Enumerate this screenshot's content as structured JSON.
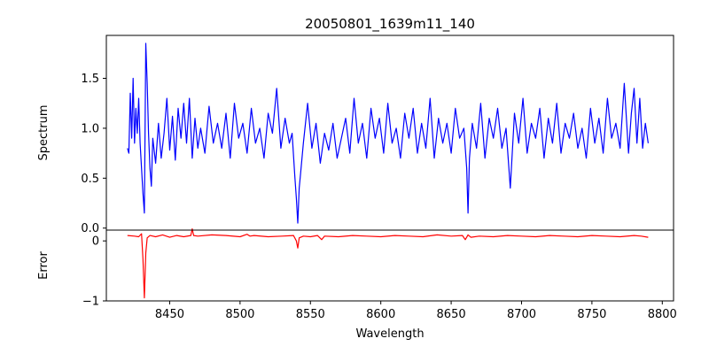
{
  "chart_data": [
    {
      "type": "line",
      "title": "20050801_1639m11_140",
      "xlabel": "",
      "ylabel": "Spectrum",
      "xlim": [
        8405,
        8808
      ],
      "ylim": [
        -0.02,
        1.93
      ],
      "yticks": [
        0.0,
        0.5,
        1.0,
        1.5
      ],
      "ytick_labels": [
        "0.0",
        "0.5",
        "1.0",
        "1.5"
      ],
      "xticks_shown": false,
      "grid": false,
      "legend": "none",
      "series": [
        {
          "color": "#0000ff",
          "x": [
            8420,
            8421,
            8422,
            8423,
            8424,
            8425,
            8426,
            8427,
            8428,
            8429,
            8430,
            8431,
            8432,
            8433,
            8434,
            8435,
            8436,
            8437,
            8438,
            8440,
            8442,
            8444,
            8446,
            8448,
            8450,
            8452,
            8454,
            8456,
            8458,
            8460,
            8462,
            8464,
            8466,
            8468,
            8470,
            8472,
            8475,
            8478,
            8481,
            8484,
            8487,
            8490,
            8493,
            8496,
            8499,
            8502,
            8505,
            8508,
            8511,
            8514,
            8517,
            8520,
            8523,
            8526,
            8529,
            8532,
            8535,
            8537,
            8539,
            8540,
            8541,
            8542,
            8543,
            8545,
            8548,
            8551,
            8554,
            8557,
            8560,
            8563,
            8566,
            8569,
            8572,
            8575,
            8578,
            8581,
            8584,
            8587,
            8590,
            8593,
            8596,
            8599,
            8602,
            8605,
            8608,
            8611,
            8614,
            8617,
            8620,
            8623,
            8626,
            8629,
            8632,
            8635,
            8638,
            8641,
            8644,
            8647,
            8650,
            8653,
            8656,
            8659,
            8661,
            8662,
            8663,
            8665,
            8668,
            8671,
            8674,
            8677,
            8680,
            8683,
            8686,
            8689,
            8692,
            8695,
            8698,
            8701,
            8704,
            8707,
            8710,
            8713,
            8716,
            8719,
            8722,
            8725,
            8728,
            8731,
            8734,
            8737,
            8740,
            8743,
            8746,
            8749,
            8752,
            8755,
            8758,
            8761,
            8764,
            8767,
            8770,
            8773,
            8776,
            8778,
            8780,
            8782,
            8784,
            8786,
            8788,
            8790
          ],
          "y": [
            0.8,
            0.75,
            1.35,
            0.9,
            1.5,
            0.85,
            1.2,
            0.95,
            1.3,
            0.85,
            0.6,
            0.35,
            0.15,
            1.85,
            1.45,
            0.95,
            0.6,
            0.42,
            0.9,
            0.65,
            1.05,
            0.7,
            0.95,
            1.3,
            0.78,
            1.12,
            0.68,
            1.2,
            0.9,
            1.25,
            0.85,
            1.3,
            0.7,
            1.1,
            0.8,
            1.0,
            0.75,
            1.22,
            0.85,
            1.05,
            0.8,
            1.15,
            0.7,
            1.25,
            0.9,
            1.05,
            0.75,
            1.2,
            0.85,
            1.0,
            0.7,
            1.15,
            0.95,
            1.4,
            0.8,
            1.1,
            0.85,
            0.95,
            0.5,
            0.3,
            0.05,
            0.4,
            0.55,
            0.85,
            1.25,
            0.8,
            1.05,
            0.65,
            0.95,
            0.78,
            1.05,
            0.7,
            0.9,
            1.1,
            0.75,
            1.3,
            0.85,
            1.05,
            0.7,
            1.2,
            0.9,
            1.1,
            0.75,
            1.25,
            0.85,
            1.0,
            0.7,
            1.15,
            0.9,
            1.2,
            0.75,
            1.05,
            0.8,
            1.3,
            0.7,
            1.1,
            0.85,
            1.05,
            0.75,
            1.2,
            0.9,
            1.0,
            0.6,
            0.15,
            0.7,
            1.05,
            0.8,
            1.25,
            0.7,
            1.1,
            0.9,
            1.2,
            0.8,
            1.0,
            0.4,
            1.15,
            0.85,
            1.3,
            0.75,
            1.05,
            0.9,
            1.2,
            0.7,
            1.1,
            0.85,
            1.25,
            0.75,
            1.05,
            0.9,
            1.15,
            0.8,
            1.0,
            0.7,
            1.2,
            0.85,
            1.1,
            0.75,
            1.3,
            0.9,
            1.05,
            0.8,
            1.45,
            0.75,
            1.15,
            1.4,
            0.85,
            1.3,
            0.8,
            1.05,
            0.85
          ]
        }
      ]
    },
    {
      "type": "line",
      "title": "",
      "xlabel": "Wavelength",
      "ylabel": "Error",
      "xlim": [
        8405,
        8808
      ],
      "ylim": [
        -1.0,
        0.18
      ],
      "yticks": [
        -1,
        0
      ],
      "ytick_labels": [
        "−1",
        "0"
      ],
      "xticks": [
        8450,
        8500,
        8550,
        8600,
        8650,
        8700,
        8750,
        8800
      ],
      "xtick_labels": [
        "8450",
        "8500",
        "8550",
        "8600",
        "8650",
        "8700",
        "8750",
        "8800"
      ],
      "grid": false,
      "legend": "none",
      "series": [
        {
          "color": "#ff0000",
          "x": [
            8420,
            8425,
            8428,
            8430,
            8431,
            8432,
            8433,
            8434,
            8436,
            8440,
            8445,
            8450,
            8455,
            8460,
            8465,
            8466,
            8467,
            8470,
            8480,
            8490,
            8500,
            8505,
            8507,
            8510,
            8520,
            8530,
            8538,
            8540,
            8541,
            8542,
            8545,
            8550,
            8555,
            8558,
            8560,
            8570,
            8580,
            8590,
            8600,
            8610,
            8620,
            8630,
            8640,
            8650,
            8658,
            8660,
            8662,
            8664,
            8670,
            8680,
            8690,
            8700,
            8710,
            8720,
            8730,
            8740,
            8750,
            8760,
            8770,
            8780,
            8785,
            8790
          ],
          "y": [
            0.09,
            0.08,
            0.07,
            0.12,
            -0.3,
            -0.95,
            -0.2,
            0.05,
            0.09,
            0.07,
            0.1,
            0.06,
            0.09,
            0.07,
            0.09,
            0.2,
            0.09,
            0.08,
            0.1,
            0.09,
            0.07,
            0.11,
            0.08,
            0.09,
            0.07,
            0.08,
            0.09,
            0.0,
            -0.12,
            0.05,
            0.08,
            0.07,
            0.09,
            0.02,
            0.08,
            0.07,
            0.09,
            0.08,
            0.07,
            0.09,
            0.08,
            0.07,
            0.1,
            0.08,
            0.09,
            0.02,
            0.1,
            0.06,
            0.08,
            0.07,
            0.09,
            0.08,
            0.07,
            0.09,
            0.08,
            0.07,
            0.09,
            0.08,
            0.07,
            0.09,
            0.08,
            0.06
          ]
        }
      ]
    }
  ]
}
